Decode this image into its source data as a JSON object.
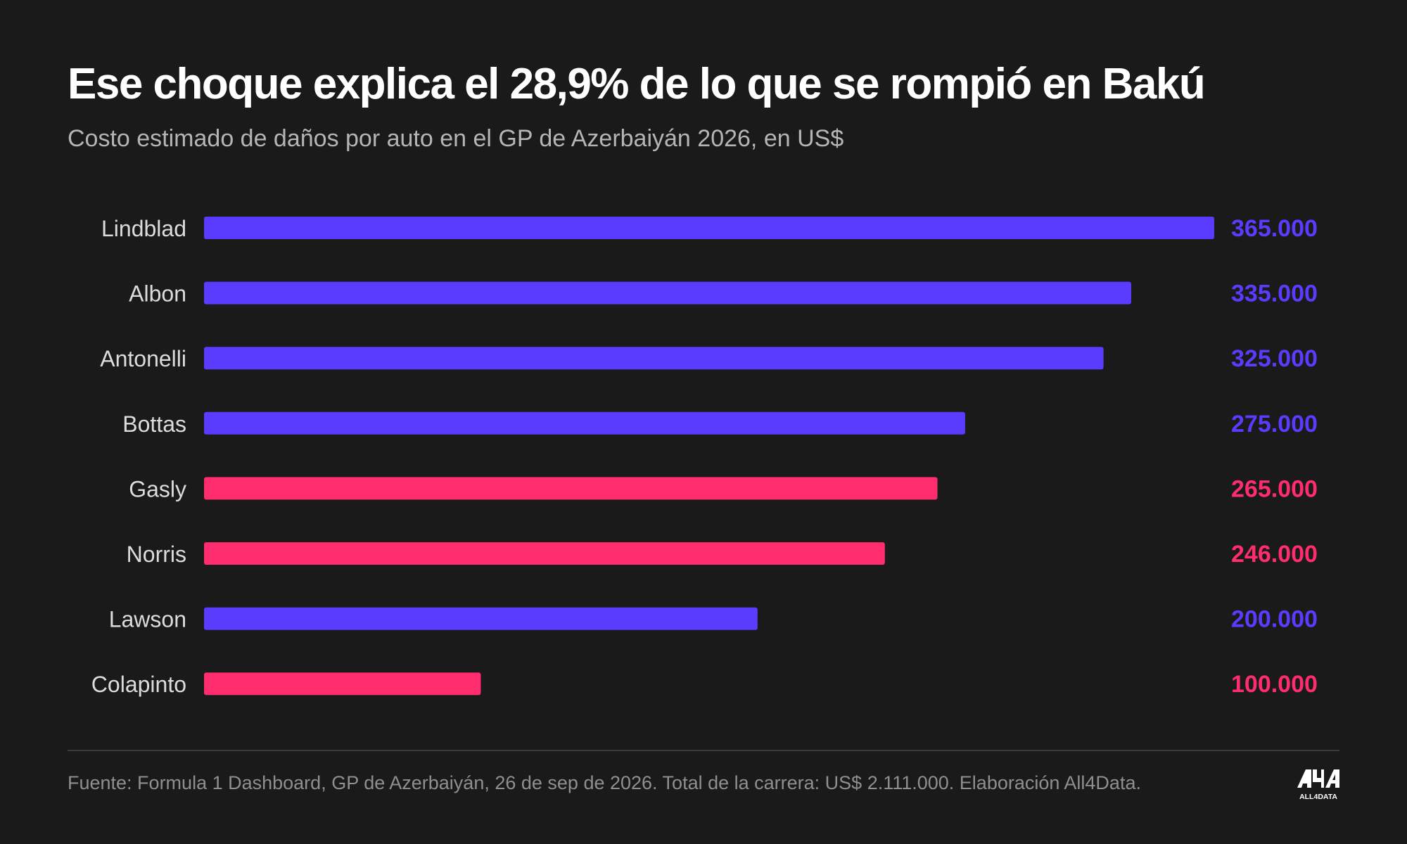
{
  "title": "Ese choque explica el 28,9% de lo que se rompió en Bakú",
  "subtitle": "Costo estimado de daños por auto en el GP de Azerbaiyán 2026, en US$",
  "footer": "Fuente: Formula 1 Dashboard, GP de Azerbaiyán, 26 de sep de 2026. Total de la carrera: US$ 2.111.000. Elaboración All4Data.",
  "logo": {
    "mark": "A4A",
    "text": "ALL4DATA",
    "icon": "all4data-logo-icon"
  },
  "colors": {
    "background": "#1a1a1a",
    "purple": "#5a3cff",
    "pink": "#ff2d6e"
  },
  "chart_data": {
    "type": "bar",
    "orientation": "horizontal",
    "categories": [
      "Lindblad",
      "Albon",
      "Antonelli",
      "Bottas",
      "Gasly",
      "Norris",
      "Lawson",
      "Colapinto"
    ],
    "values": [
      365000,
      335000,
      325000,
      275000,
      265000,
      246000,
      200000,
      100000
    ],
    "value_labels": [
      "365.000",
      "335.000",
      "325.000",
      "275.000",
      "265.000",
      "246.000",
      "200.000",
      "100.000"
    ],
    "bar_colors": [
      "#5a3cff",
      "#5a3cff",
      "#5a3cff",
      "#5a3cff",
      "#ff2d6e",
      "#ff2d6e",
      "#5a3cff",
      "#ff2d6e"
    ],
    "xlim": [
      0,
      365000
    ],
    "grid": false,
    "legend": false
  }
}
